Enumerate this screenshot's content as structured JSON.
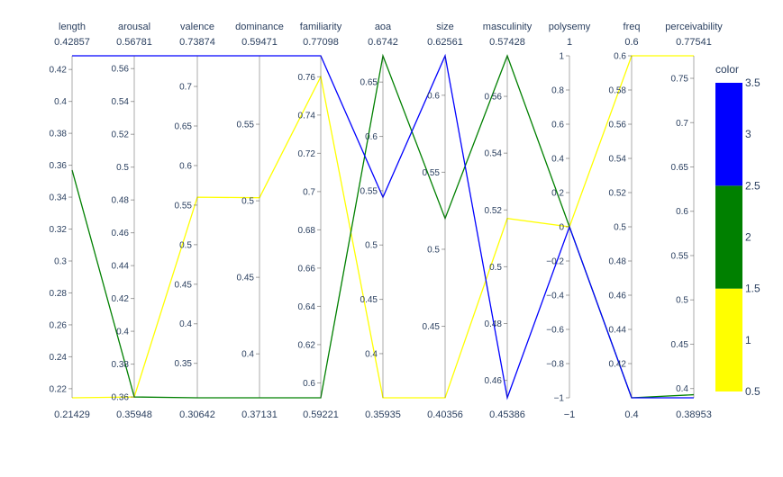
{
  "chart_data": {
    "type": "parallel_coordinates",
    "dimensions": [
      {
        "label": "length",
        "range": [
          0.21429,
          0.42857
        ],
        "range_labels": [
          "0.42857",
          "0.21429"
        ],
        "ticks": [
          0.22,
          0.24,
          0.26,
          0.28,
          0.3,
          0.32,
          0.34,
          0.36,
          0.38,
          0.4,
          0.42
        ],
        "tick_labels": [
          "0.22",
          "0.24",
          "0.26",
          "0.28",
          "0.3",
          "0.32",
          "0.34",
          "0.36",
          "0.38",
          "0.4",
          "0.42"
        ]
      },
      {
        "label": "arousal",
        "range": [
          0.35948,
          0.56781
        ],
        "range_labels": [
          "0.56781",
          "0.35948"
        ],
        "ticks": [
          0.36,
          0.38,
          0.4,
          0.42,
          0.44,
          0.46,
          0.48,
          0.5,
          0.52,
          0.54,
          0.56
        ],
        "tick_labels": [
          "0.36",
          "0.38",
          "0.4",
          "0.42",
          "0.44",
          "0.46",
          "0.48",
          "0.5",
          "0.52",
          "0.54",
          "0.56"
        ]
      },
      {
        "label": "valence",
        "range": [
          0.30642,
          0.73874
        ],
        "range_labels": [
          "0.73874",
          "0.30642"
        ],
        "ticks": [
          0.35,
          0.4,
          0.45,
          0.5,
          0.55,
          0.6,
          0.65,
          0.7
        ],
        "tick_labels": [
          "0.35",
          "0.4",
          "0.45",
          "0.5",
          "0.55",
          "0.6",
          "0.65",
          "0.7"
        ]
      },
      {
        "label": "dominance",
        "range": [
          0.37131,
          0.59471
        ],
        "range_labels": [
          "0.59471",
          "0.37131"
        ],
        "ticks": [
          0.4,
          0.45,
          0.5,
          0.55
        ],
        "tick_labels": [
          "0.4",
          "0.45",
          "0.5",
          "0.55"
        ]
      },
      {
        "label": "familiarity",
        "range": [
          0.59221,
          0.77098
        ],
        "range_labels": [
          "0.77098",
          "0.59221"
        ],
        "ticks": [
          0.6,
          0.62,
          0.64,
          0.66,
          0.68,
          0.7,
          0.72,
          0.74,
          0.76
        ],
        "tick_labels": [
          "0.6",
          "0.62",
          "0.64",
          "0.66",
          "0.68",
          "0.7",
          "0.72",
          "0.74",
          "0.76"
        ]
      },
      {
        "label": "aoa",
        "range": [
          0.35935,
          0.6742
        ],
        "range_labels": [
          "0.6742",
          "0.35935"
        ],
        "ticks": [
          0.4,
          0.45,
          0.5,
          0.55,
          0.6,
          0.65
        ],
        "tick_labels": [
          "0.4",
          "0.45",
          "0.5",
          "0.55",
          "0.6",
          "0.65"
        ]
      },
      {
        "label": "size",
        "range": [
          0.40356,
          0.62561
        ],
        "range_labels": [
          "0.62561",
          "0.40356"
        ],
        "ticks": [
          0.45,
          0.5,
          0.55,
          0.6
        ],
        "tick_labels": [
          "0.45",
          "0.5",
          "0.55",
          "0.6"
        ]
      },
      {
        "label": "masculinity",
        "range": [
          0.45386,
          0.57428
        ],
        "range_labels": [
          "0.57428",
          "0.45386"
        ],
        "ticks": [
          0.46,
          0.48,
          0.5,
          0.52,
          0.54,
          0.56
        ],
        "tick_labels": [
          "0.46",
          "0.48",
          "0.5",
          "0.52",
          "0.54",
          "0.56"
        ]
      },
      {
        "label": "polysemy",
        "range": [
          -1,
          1
        ],
        "range_labels": [
          "1",
          "−1"
        ],
        "ticks": [
          -1,
          -0.8,
          -0.6,
          -0.4,
          -0.2,
          0,
          0.2,
          0.4,
          0.6,
          0.8,
          1
        ],
        "tick_labels": [
          "−1",
          "−0.8",
          "−0.6",
          "−0.4",
          "−0.2",
          "0",
          "0.2",
          "0.4",
          "0.6",
          "0.8",
          "1"
        ]
      },
      {
        "label": "freq",
        "range": [
          0.4,
          0.6
        ],
        "range_labels": [
          "0.6",
          "0.4"
        ],
        "ticks": [
          0.42,
          0.44,
          0.46,
          0.48,
          0.5,
          0.52,
          0.54,
          0.56,
          0.58,
          0.6
        ],
        "tick_labels": [
          "0.42",
          "0.44",
          "0.46",
          "0.48",
          "0.5",
          "0.52",
          "0.54",
          "0.56",
          "0.58",
          "0.6"
        ]
      },
      {
        "label": "perceivability",
        "range": [
          0.38953,
          0.77541
        ],
        "range_labels": [
          "0.77541",
          "0.38953"
        ],
        "ticks": [
          0.4,
          0.45,
          0.5,
          0.55,
          0.6,
          0.65,
          0.7,
          0.75
        ],
        "tick_labels": [
          "0.4",
          "0.45",
          "0.5",
          "0.55",
          "0.6",
          "0.65",
          "0.7",
          "0.75"
        ]
      }
    ],
    "series": [
      {
        "color_value": 1,
        "color": "#ffff00",
        "values": [
          0.21429,
          0.36,
          0.56,
          0.502,
          0.76,
          0.35935,
          0.40356,
          0.517,
          0.0,
          0.6,
          0.77541
        ]
      },
      {
        "color_value": 2,
        "color": "#008000",
        "values": [
          0.357,
          0.36,
          0.30642,
          0.37131,
          0.59221,
          0.6742,
          0.52,
          0.57428,
          0.0,
          0.4,
          0.393
        ]
      },
      {
        "color_value": 3,
        "color": "#0000ff",
        "values": [
          0.42857,
          0.56781,
          0.73874,
          0.59471,
          0.77098,
          0.544,
          0.62561,
          0.45386,
          0.0,
          0.4,
          0.38953
        ]
      }
    ],
    "colorbar": {
      "title": "color",
      "range": [
        0.5,
        3.5
      ],
      "ticks": [
        0.5,
        1,
        1.5,
        2,
        2.5,
        3,
        3.5
      ],
      "tick_labels": [
        "0.5",
        "1",
        "1.5",
        "2",
        "2.5",
        "3",
        "3.5"
      ],
      "bands": [
        {
          "from": 0.5,
          "to": 1.5,
          "color": "#ffff00"
        },
        {
          "from": 1.5,
          "to": 2.5,
          "color": "#008000"
        },
        {
          "from": 2.5,
          "to": 3.5,
          "color": "#0000ff"
        }
      ]
    }
  }
}
